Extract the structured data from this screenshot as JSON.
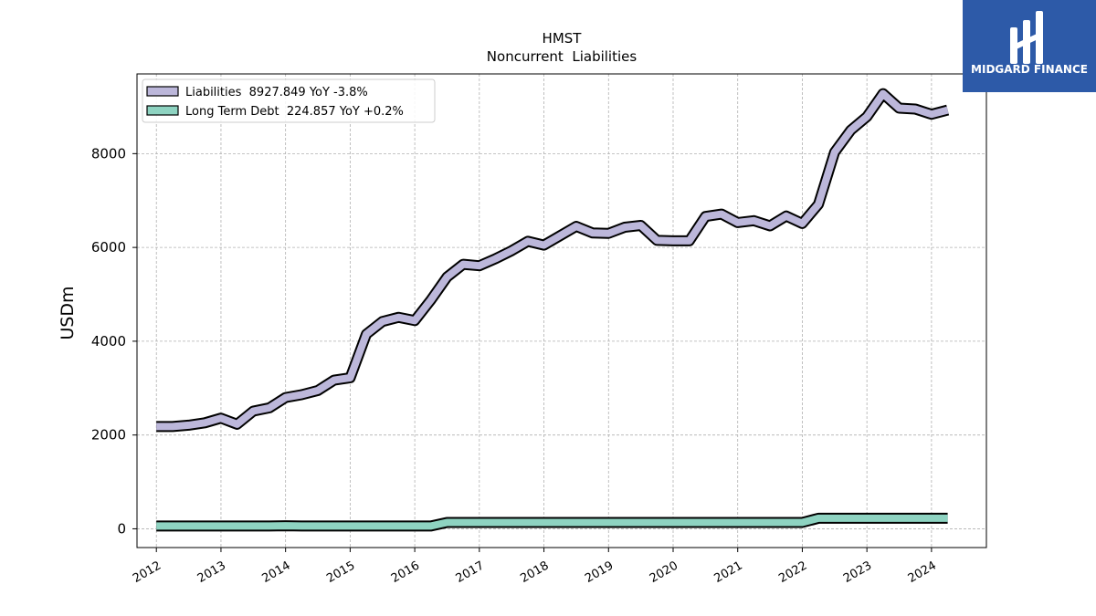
{
  "chart_data": {
    "type": "line",
    "title": "HMST",
    "subtitle": "Noncurrent  Liabilities",
    "ylabel": "USDm",
    "xlabel": "",
    "xlim": [
      2011.7,
      2024.85
    ],
    "ylim": [
      -400,
      9700
    ],
    "yticks": [
      0,
      2000,
      4000,
      6000,
      8000
    ],
    "ytick_labels": [
      "0",
      "2000",
      "4000",
      "6000",
      "8000"
    ],
    "xticks": [
      2012,
      2013,
      2014,
      2015,
      2016,
      2017,
      2018,
      2019,
      2020,
      2021,
      2022,
      2023,
      2024
    ],
    "xtick_labels": [
      "2012",
      "2013",
      "2014",
      "2015",
      "2016",
      "2017",
      "2018",
      "2019",
      "2020",
      "2021",
      "2022",
      "2023",
      "2024"
    ],
    "grid": true,
    "legend_position": "top-left",
    "series": [
      {
        "name": "Liabilities  8927.849 YoY -3.8%",
        "color": "#bcb7da",
        "x": [
          2012.0,
          2012.25,
          2012.5,
          2012.75,
          2013.0,
          2013.25,
          2013.5,
          2013.75,
          2014.0,
          2014.25,
          2014.5,
          2014.75,
          2015.0,
          2015.25,
          2015.5,
          2015.75,
          2016.0,
          2016.25,
          2016.5,
          2016.75,
          2017.0,
          2017.25,
          2017.5,
          2017.75,
          2018.0,
          2018.25,
          2018.5,
          2018.75,
          2019.0,
          2019.25,
          2019.5,
          2019.75,
          2020.0,
          2020.25,
          2020.5,
          2020.75,
          2021.0,
          2021.25,
          2021.5,
          2021.75,
          2022.0,
          2022.25,
          2022.5,
          2022.75,
          2023.0,
          2023.25,
          2023.5,
          2023.75,
          2024.0,
          2024.25
        ],
        "values": [
          2180,
          2180,
          2210,
          2260,
          2360,
          2230,
          2510,
          2580,
          2800,
          2860,
          2950,
          3170,
          3220,
          4150,
          4420,
          4510,
          4440,
          4880,
          5370,
          5640,
          5610,
          5760,
          5930,
          6130,
          6050,
          6250,
          6450,
          6310,
          6300,
          6430,
          6470,
          6150,
          6140,
          6140,
          6660,
          6710,
          6530,
          6570,
          6460,
          6670,
          6510,
          6920,
          8030,
          8500,
          8790,
          9280,
          8970,
          8950,
          8840,
          8930
        ]
      },
      {
        "name": "Long Term Debt  224.857 YoY +0.2%",
        "color": "#8ed3c1",
        "x": [
          2012.0,
          2012.25,
          2012.5,
          2012.75,
          2013.0,
          2013.25,
          2013.5,
          2013.75,
          2014.0,
          2014.25,
          2014.5,
          2014.75,
          2015.0,
          2015.25,
          2015.5,
          2015.75,
          2016.0,
          2016.25,
          2016.5,
          2016.75,
          2017.0,
          2017.25,
          2017.5,
          2017.75,
          2018.0,
          2018.25,
          2018.5,
          2018.75,
          2019.0,
          2019.25,
          2019.5,
          2019.75,
          2020.0,
          2020.25,
          2020.5,
          2020.75,
          2021.0,
          2021.25,
          2021.5,
          2021.75,
          2022.0,
          2022.25,
          2022.5,
          2022.75,
          2023.0,
          2023.25,
          2023.5,
          2023.75,
          2024.0,
          2024.25
        ],
        "values": [
          60,
          60,
          60,
          60,
          60,
          60,
          60,
          60,
          65,
          60,
          60,
          60,
          60,
          60,
          60,
          60,
          60,
          60,
          135,
          135,
          135,
          135,
          135,
          135,
          135,
          135,
          135,
          135,
          135,
          135,
          135,
          135,
          135,
          135,
          135,
          135,
          135,
          135,
          135,
          135,
          135,
          225,
          225,
          225,
          225,
          225,
          225,
          225,
          225,
          225
        ]
      }
    ]
  },
  "logo": {
    "text": "MIDGARD FINANCE",
    "background": "#2d5aa8"
  }
}
